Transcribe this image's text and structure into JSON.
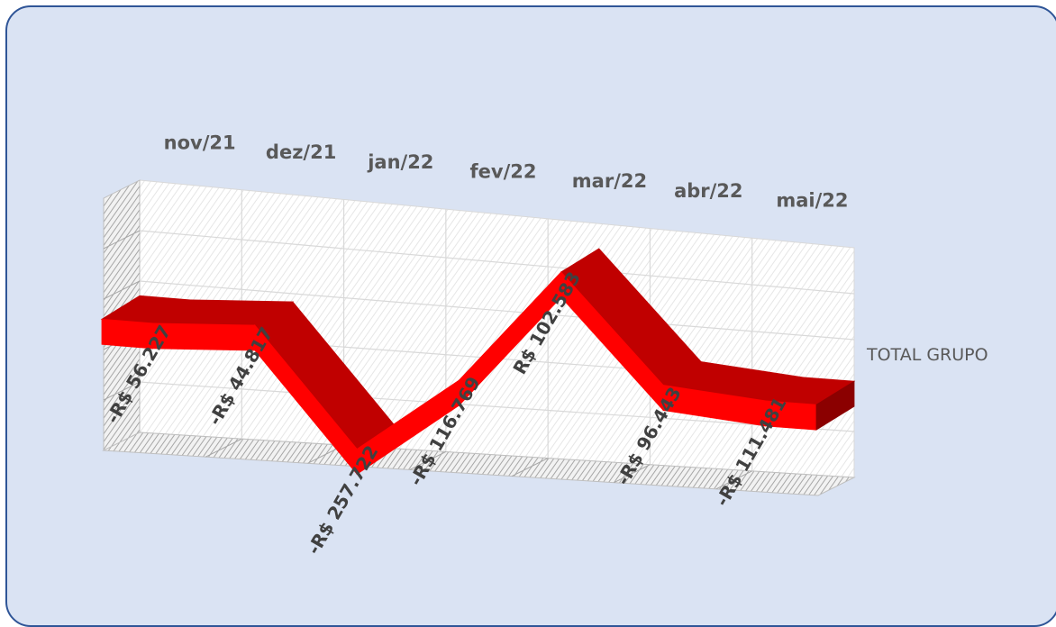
{
  "chart_data": {
    "type": "area",
    "variant": "3d-ribbon-line",
    "categories": [
      "nov/21",
      "dez/21",
      "jan/22",
      "fev/22",
      "mar/22",
      "abr/22",
      "mai/22"
    ],
    "series": [
      {
        "name": "TOTAL GRUPO",
        "values": [
          -56227,
          -44817,
          -257722,
          -116769,
          102583,
          -96443,
          -111481
        ],
        "labels": [
          "-R$ 56.227",
          "-R$ 44.817",
          "-R$ 257.722",
          "-R$ 116.769",
          "R$ 102.583",
          "-R$ 96.443",
          "-R$ 111.481"
        ],
        "color": "#ff0000"
      }
    ],
    "ylim": [
      -300000,
      150000
    ],
    "grid": true,
    "legend": "right",
    "colors": {
      "background": "#dae3f3",
      "border": "#2f5597",
      "series": "#ff0000",
      "series_shade": "#c00000"
    }
  }
}
